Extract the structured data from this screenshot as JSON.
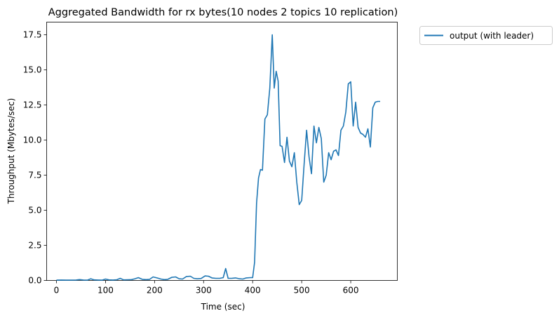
{
  "chart_data": {
    "type": "line",
    "title": "Aggregated Bandwidth for rx bytes(10 nodes 2 topics 10 replication)",
    "xlabel": "Time (sec)",
    "ylabel": "Throughput (Mbytes/sec)",
    "xlim": [
      -20,
      695
    ],
    "ylim": [
      0,
      18.4
    ],
    "xticks": [
      0,
      100,
      200,
      300,
      400,
      500,
      600
    ],
    "xtick_labels": [
      "0",
      "100",
      "200",
      "300",
      "400",
      "500",
      "600"
    ],
    "yticks": [
      0,
      2.5,
      5,
      7.5,
      10,
      12.5,
      15,
      17.5
    ],
    "ytick_labels": [
      "0.0",
      "2.5",
      "5.0",
      "7.5",
      "10.0",
      "12.5",
      "15.0",
      "17.5"
    ],
    "grid": false,
    "legend_position": "outside-top-right",
    "series": [
      {
        "name": "output (with leader)",
        "color": "#1f77b4",
        "x": [
          0,
          10,
          20,
          30,
          40,
          47,
          55,
          63,
          70,
          77,
          85,
          93,
          100,
          107,
          115,
          123,
          130,
          137,
          145,
          153,
          160,
          167,
          175,
          183,
          190,
          197,
          205,
          213,
          220,
          227,
          235,
          243,
          250,
          257,
          265,
          273,
          280,
          287,
          295,
          303,
          310,
          317,
          325,
          333,
          340,
          345,
          350,
          357,
          365,
          373,
          380,
          387,
          395,
          400,
          404,
          408,
          412,
          416,
          420,
          425,
          430,
          435,
          440,
          444,
          448,
          452,
          456,
          460,
          465,
          470,
          475,
          480,
          485,
          490,
          495,
          500,
          505,
          510,
          515,
          520,
          525,
          530,
          535,
          540,
          545,
          550,
          555,
          560,
          565,
          570,
          575,
          580,
          585,
          590,
          595,
          600,
          605,
          610,
          615,
          620,
          625,
          630,
          635,
          640,
          645,
          650,
          655,
          660
        ],
        "y": [
          0.02,
          0.03,
          0.02,
          0.02,
          0.03,
          0.06,
          0.03,
          0.02,
          0.12,
          0.04,
          0.03,
          0.02,
          0.1,
          0.04,
          0.03,
          0.05,
          0.15,
          0.04,
          0.05,
          0.06,
          0.12,
          0.2,
          0.08,
          0.06,
          0.08,
          0.25,
          0.18,
          0.1,
          0.06,
          0.08,
          0.22,
          0.25,
          0.12,
          0.1,
          0.28,
          0.3,
          0.15,
          0.12,
          0.14,
          0.32,
          0.3,
          0.18,
          0.15,
          0.15,
          0.2,
          0.85,
          0.15,
          0.15,
          0.18,
          0.12,
          0.1,
          0.18,
          0.2,
          0.2,
          1.3,
          5.5,
          7.3,
          7.9,
          7.85,
          11.5,
          11.8,
          13.7,
          17.5,
          13.7,
          14.9,
          14.2,
          9.6,
          9.55,
          8.4,
          10.2,
          8.5,
          8.1,
          9.1,
          7.0,
          5.4,
          5.7,
          8.3,
          10.7,
          8.8,
          7.6,
          11.0,
          9.8,
          10.9,
          10.1,
          7.0,
          7.5,
          9.1,
          8.6,
          9.2,
          9.3,
          8.9,
          10.7,
          11.0,
          12.0,
          14.0,
          14.15,
          11.0,
          12.7,
          10.9,
          10.5,
          10.4,
          10.2,
          10.8,
          9.5,
          12.3,
          12.7,
          12.75,
          12.75
        ]
      }
    ]
  }
}
